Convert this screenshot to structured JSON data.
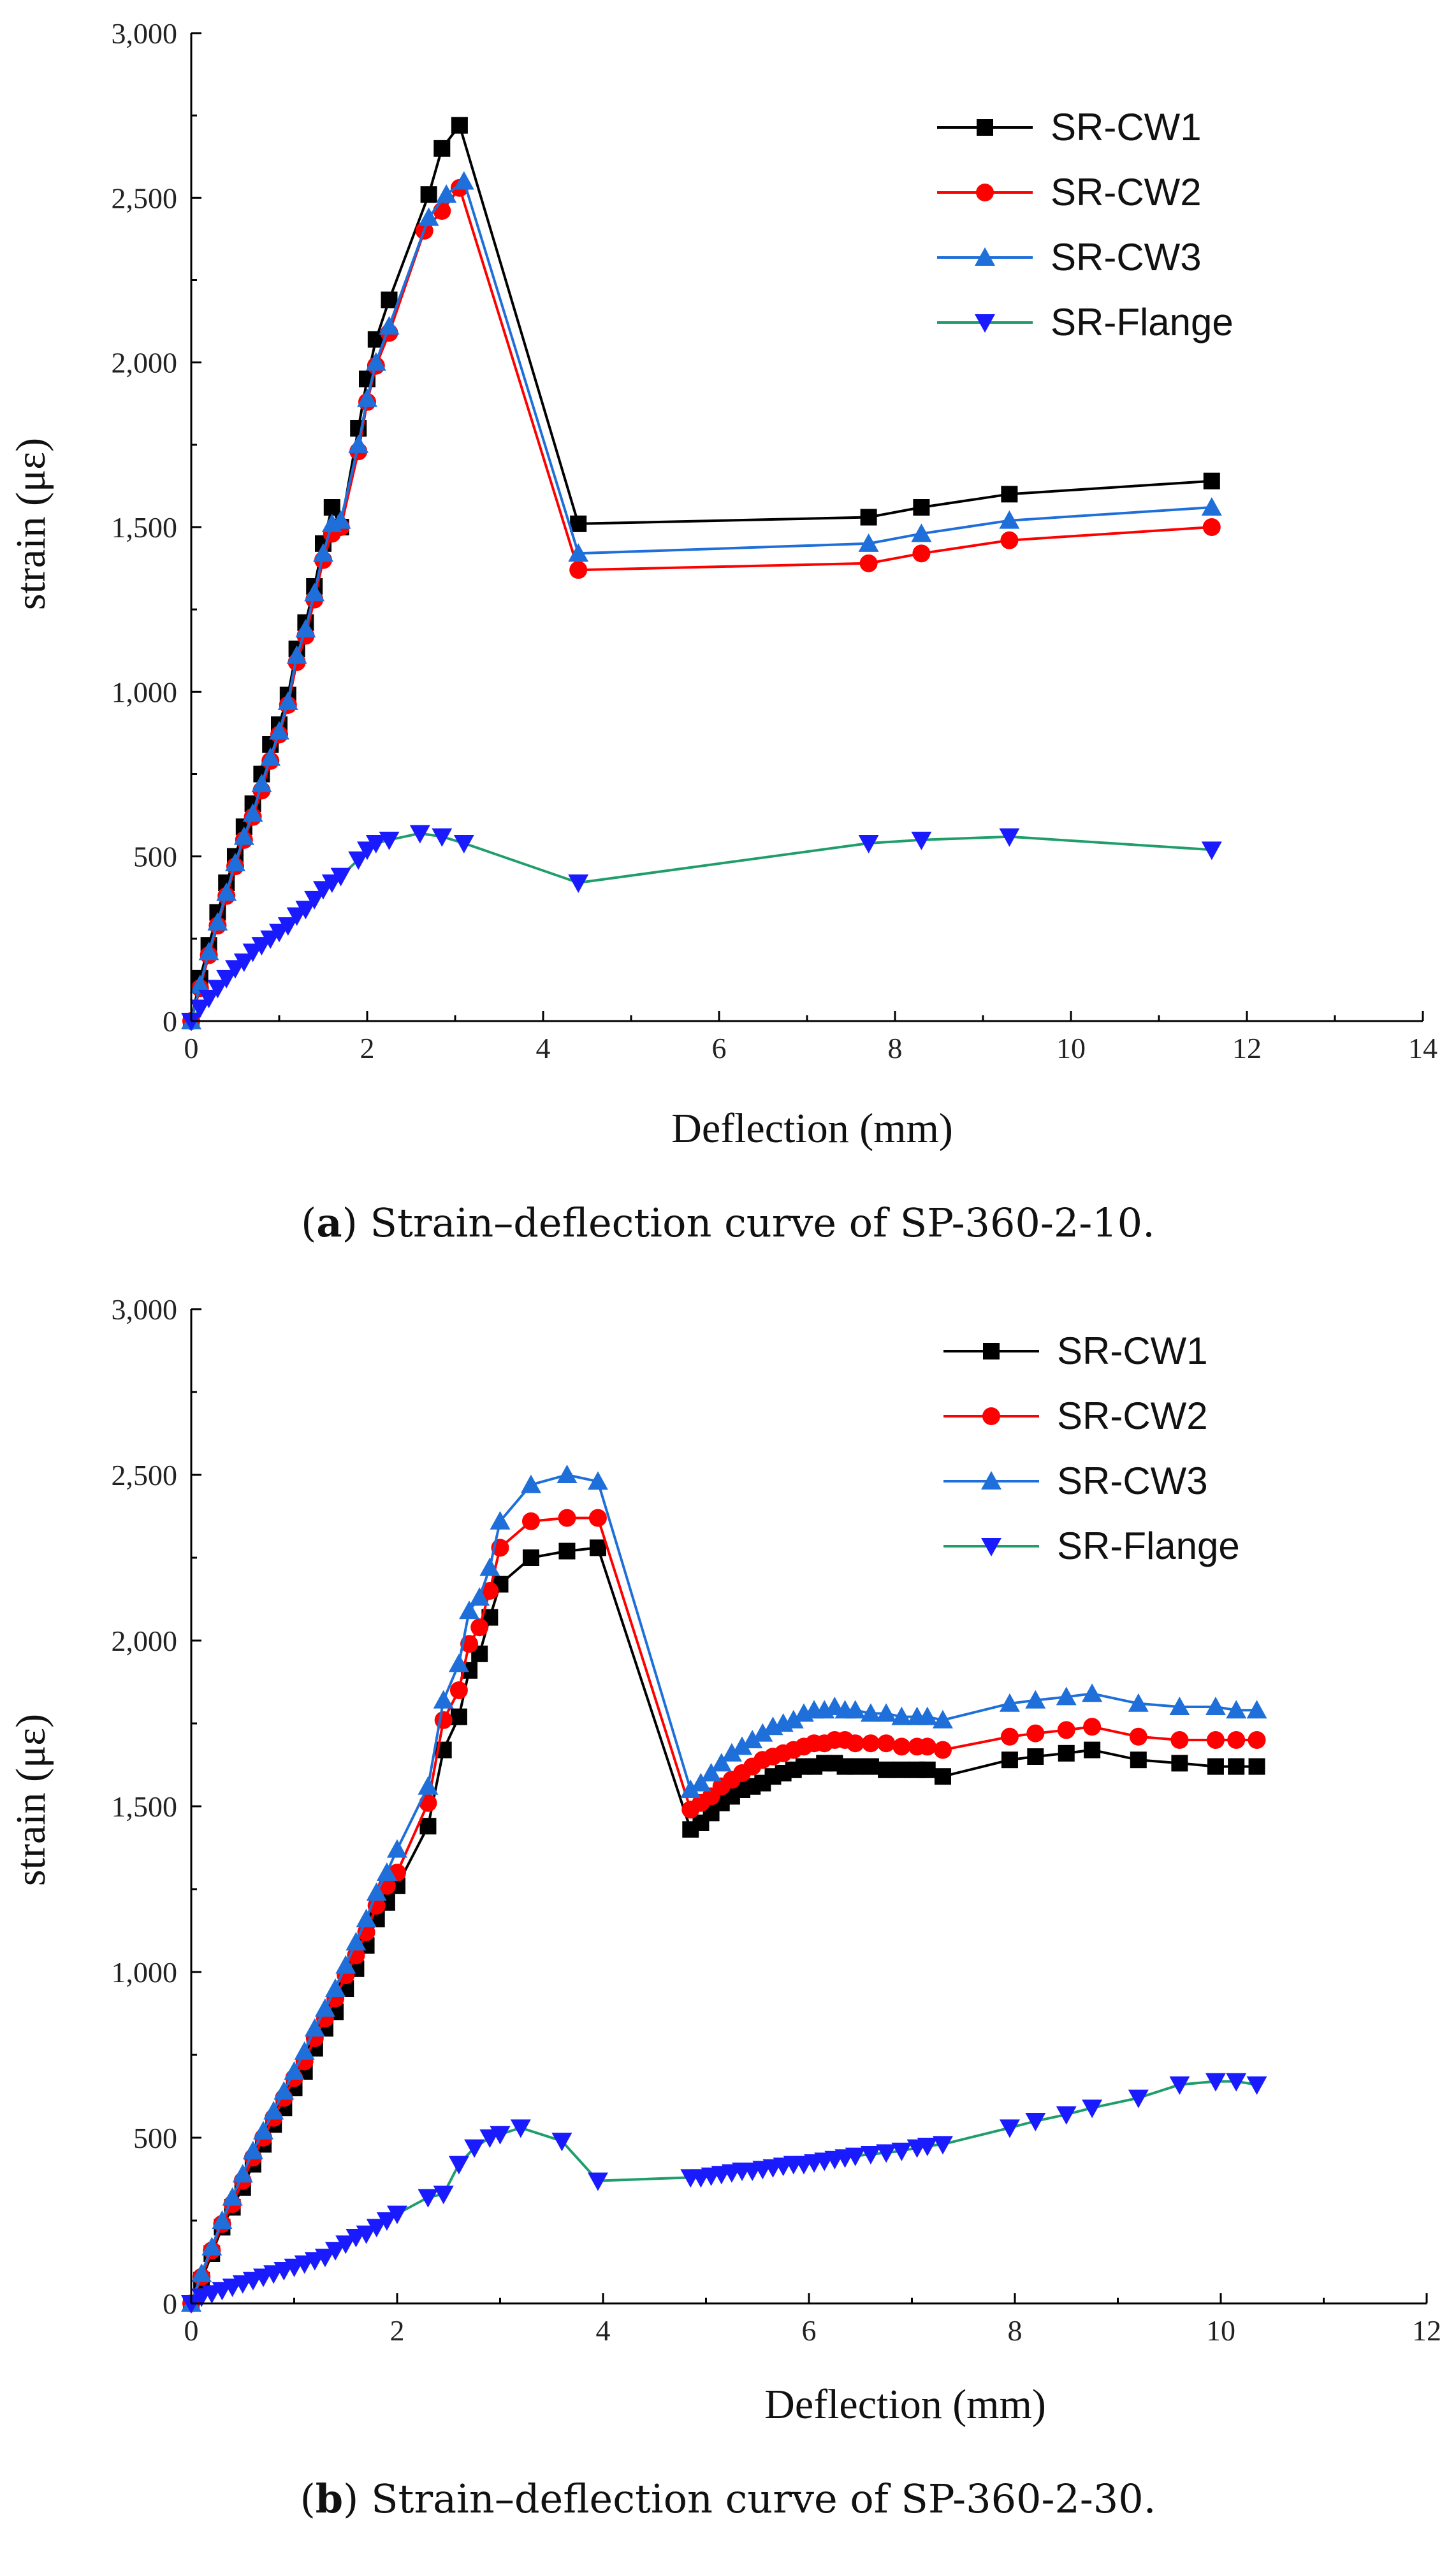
{
  "chart_data": [
    {
      "type": "line",
      "xlabel": "Deflection (mm)",
      "ylabel": "strain (με)",
      "xlim": [
        0,
        14
      ],
      "ylim": [
        0,
        3000
      ],
      "xticks": [
        "0",
        "2",
        "4",
        "6",
        "8",
        "10",
        "12",
        "14"
      ],
      "yticks": [
        "0",
        "500",
        "1,000",
        "1,500",
        "2,000",
        "2,500",
        "3,000"
      ],
      "legend_position": "top-right",
      "caption": {
        "label": "a",
        "text": "Strain–deflection curve of SP-360-2-10."
      },
      "series": [
        {
          "name": "SR-CW1",
          "color": "#000000",
          "marker": "square",
          "x": [
            0,
            0.1,
            0.2,
            0.3,
            0.4,
            0.5,
            0.6,
            0.7,
            0.8,
            0.9,
            1.0,
            1.1,
            1.2,
            1.3,
            1.4,
            1.5,
            1.6,
            1.7,
            1.9,
            2.0,
            2.1,
            2.25,
            2.7,
            2.85,
            3.05,
            4.4,
            7.7,
            8.3,
            9.3,
            11.6
          ],
          "y": [
            0,
            130,
            230,
            330,
            420,
            500,
            590,
            660,
            750,
            840,
            900,
            990,
            1130,
            1210,
            1320,
            1450,
            1560,
            1500,
            1800,
            1950,
            2070,
            2190,
            2510,
            2650,
            2720,
            1510,
            1530,
            1560,
            1600,
            1640
          ]
        },
        {
          "name": "SR-CW2",
          "color": "#ff0000",
          "marker": "circle",
          "x": [
            0,
            0.1,
            0.2,
            0.3,
            0.4,
            0.5,
            0.6,
            0.7,
            0.8,
            0.9,
            1.0,
            1.1,
            1.2,
            1.3,
            1.4,
            1.5,
            1.6,
            1.7,
            1.9,
            2.0,
            2.1,
            2.25,
            2.65,
            2.85,
            3.05,
            4.4,
            7.7,
            8.3,
            9.3,
            11.6
          ],
          "y": [
            0,
            100,
            200,
            290,
            380,
            470,
            550,
            620,
            700,
            790,
            870,
            960,
            1090,
            1170,
            1280,
            1400,
            1480,
            1500,
            1730,
            1880,
            1990,
            2090,
            2400,
            2460,
            2530,
            1370,
            1390,
            1420,
            1460,
            1500
          ]
        },
        {
          "name": "SR-CW3",
          "color": "#1e6fd9",
          "marker": "triangle-up",
          "x": [
            0,
            0.1,
            0.2,
            0.3,
            0.4,
            0.5,
            0.6,
            0.7,
            0.8,
            0.9,
            1.0,
            1.1,
            1.2,
            1.3,
            1.4,
            1.5,
            1.6,
            1.7,
            1.9,
            2.0,
            2.1,
            2.25,
            2.7,
            2.9,
            3.1,
            4.4,
            7.7,
            8.3,
            9.3,
            11.6
          ],
          "y": [
            0,
            110,
            210,
            300,
            390,
            480,
            560,
            630,
            720,
            800,
            880,
            970,
            1110,
            1190,
            1300,
            1420,
            1510,
            1520,
            1750,
            1890,
            2000,
            2110,
            2440,
            2510,
            2550,
            1420,
            1450,
            1480,
            1520,
            1560
          ]
        },
        {
          "name": "SR-Flange",
          "color": "#1f9e6b",
          "marker": "triangle-down",
          "x": [
            0,
            0.1,
            0.2,
            0.3,
            0.4,
            0.5,
            0.6,
            0.7,
            0.8,
            0.9,
            1.0,
            1.1,
            1.2,
            1.3,
            1.4,
            1.5,
            1.6,
            1.7,
            1.9,
            2.0,
            2.1,
            2.25,
            2.6,
            2.85,
            3.1,
            4.4,
            7.7,
            8.3,
            9.3,
            11.6
          ],
          "y": [
            0,
            40,
            70,
            100,
            130,
            160,
            180,
            210,
            230,
            250,
            270,
            290,
            320,
            340,
            370,
            400,
            420,
            440,
            490,
            520,
            540,
            550,
            570,
            560,
            540,
            420,
            540,
            550,
            560,
            520
          ]
        }
      ]
    },
    {
      "type": "line",
      "xlabel": "Deflection (mm)",
      "ylabel": "strain (με)",
      "xlim": [
        0,
        12
      ],
      "ylim": [
        0,
        3000
      ],
      "xticks": [
        "0",
        "2",
        "4",
        "6",
        "8",
        "10",
        "12"
      ],
      "yticks": [
        "0",
        "500",
        "1,000",
        "1,500",
        "2,000",
        "2,500",
        "3,000"
      ],
      "legend_position": "top-right",
      "caption": {
        "label": "b",
        "text": "Strain–deflection curve of SP-360-2-30."
      },
      "series": [
        {
          "name": "SR-CW1",
          "color": "#000000",
          "marker": "square",
          "x": [
            0,
            0.1,
            0.2,
            0.3,
            0.4,
            0.5,
            0.6,
            0.7,
            0.8,
            0.9,
            1.0,
            1.1,
            1.2,
            1.3,
            1.4,
            1.5,
            1.6,
            1.7,
            1.8,
            1.9,
            2.0,
            2.3,
            2.45,
            2.6,
            2.7,
            2.8,
            2.9,
            3.0,
            3.3,
            3.65,
            3.95,
            4.85,
            4.95,
            5.05,
            5.15,
            5.25,
            5.35,
            5.45,
            5.55,
            5.65,
            5.75,
            5.85,
            5.95,
            6.05,
            6.15,
            6.25,
            6.35,
            6.45,
            6.6,
            6.75,
            6.9,
            7.05,
            7.15,
            7.3,
            7.95,
            8.2,
            8.5,
            8.75,
            9.2,
            9.6,
            9.95,
            10.15,
            10.35
          ],
          "y": [
            0,
            70,
            150,
            230,
            290,
            350,
            420,
            480,
            540,
            590,
            650,
            700,
            770,
            830,
            880,
            950,
            1010,
            1080,
            1160,
            1210,
            1260,
            1440,
            1670,
            1770,
            1910,
            1960,
            2070,
            2170,
            2250,
            2270,
            2280,
            1430,
            1450,
            1480,
            1510,
            1530,
            1550,
            1560,
            1570,
            1590,
            1600,
            1610,
            1620,
            1620,
            1630,
            1630,
            1620,
            1620,
            1620,
            1610,
            1610,
            1610,
            1610,
            1590,
            1640,
            1650,
            1660,
            1670,
            1640,
            1630,
            1620,
            1620,
            1620
          ]
        },
        {
          "name": "SR-CW2",
          "color": "#ff0000",
          "marker": "circle",
          "x": [
            0,
            0.1,
            0.2,
            0.3,
            0.4,
            0.5,
            0.6,
            0.7,
            0.8,
            0.9,
            1.0,
            1.1,
            1.2,
            1.3,
            1.4,
            1.5,
            1.6,
            1.7,
            1.8,
            1.9,
            2.0,
            2.3,
            2.45,
            2.6,
            2.7,
            2.8,
            2.9,
            3.0,
            3.3,
            3.65,
            3.95,
            4.85,
            4.95,
            5.05,
            5.15,
            5.25,
            5.35,
            5.45,
            5.55,
            5.65,
            5.75,
            5.85,
            5.95,
            6.05,
            6.15,
            6.25,
            6.35,
            6.45,
            6.6,
            6.75,
            6.9,
            7.05,
            7.15,
            7.3,
            7.95,
            8.2,
            8.5,
            8.75,
            9.2,
            9.6,
            9.95,
            10.15,
            10.35
          ],
          "y": [
            0,
            80,
            160,
            240,
            300,
            370,
            440,
            500,
            560,
            620,
            680,
            730,
            800,
            860,
            920,
            990,
            1050,
            1120,
            1200,
            1260,
            1300,
            1510,
            1760,
            1850,
            1990,
            2040,
            2150,
            2280,
            2360,
            2370,
            2370,
            1490,
            1510,
            1530,
            1560,
            1580,
            1600,
            1620,
            1640,
            1650,
            1660,
            1670,
            1680,
            1690,
            1690,
            1700,
            1700,
            1690,
            1690,
            1690,
            1680,
            1680,
            1680,
            1670,
            1710,
            1720,
            1730,
            1740,
            1710,
            1700,
            1700,
            1700,
            1700
          ]
        },
        {
          "name": "SR-CW3",
          "color": "#1e6fd9",
          "marker": "triangle-up",
          "x": [
            0,
            0.1,
            0.2,
            0.3,
            0.4,
            0.5,
            0.6,
            0.7,
            0.8,
            0.9,
            1.0,
            1.1,
            1.2,
            1.3,
            1.4,
            1.5,
            1.6,
            1.7,
            1.8,
            1.9,
            2.0,
            2.3,
            2.45,
            2.6,
            2.7,
            2.8,
            2.9,
            3.0,
            3.3,
            3.65,
            3.95,
            4.85,
            4.95,
            5.05,
            5.15,
            5.25,
            5.35,
            5.45,
            5.55,
            5.65,
            5.75,
            5.85,
            5.95,
            6.05,
            6.15,
            6.25,
            6.35,
            6.45,
            6.6,
            6.75,
            6.9,
            7.05,
            7.15,
            7.3,
            7.95,
            8.2,
            8.5,
            8.75,
            9.2,
            9.6,
            9.95,
            10.15,
            10.35
          ],
          "y": [
            0,
            90,
            170,
            250,
            320,
            390,
            460,
            520,
            580,
            640,
            700,
            760,
            830,
            890,
            950,
            1020,
            1090,
            1160,
            1240,
            1300,
            1370,
            1560,
            1820,
            1930,
            2090,
            2130,
            2220,
            2360,
            2470,
            2500,
            2480,
            1550,
            1570,
            1600,
            1630,
            1660,
            1680,
            1700,
            1720,
            1740,
            1750,
            1760,
            1780,
            1790,
            1790,
            1800,
            1790,
            1790,
            1780,
            1780,
            1770,
            1770,
            1770,
            1760,
            1810,
            1820,
            1830,
            1840,
            1810,
            1800,
            1800,
            1790,
            1790
          ]
        },
        {
          "name": "SR-Flange",
          "color": "#1f9e6b",
          "marker": "triangle-down",
          "x": [
            0,
            0.1,
            0.2,
            0.3,
            0.4,
            0.5,
            0.6,
            0.7,
            0.8,
            0.9,
            1.0,
            1.1,
            1.2,
            1.3,
            1.4,
            1.5,
            1.6,
            1.7,
            1.8,
            1.9,
            2.0,
            2.3,
            2.45,
            2.6,
            2.75,
            2.9,
            3.0,
            3.2,
            3.6,
            3.95,
            4.85,
            4.95,
            5.05,
            5.15,
            5.25,
            5.35,
            5.45,
            5.55,
            5.65,
            5.75,
            5.85,
            5.95,
            6.05,
            6.15,
            6.25,
            6.35,
            6.45,
            6.6,
            6.75,
            6.9,
            7.05,
            7.15,
            7.3,
            7.95,
            8.2,
            8.5,
            8.75,
            9.2,
            9.6,
            9.95,
            10.15,
            10.35
          ],
          "y": [
            0,
            20,
            30,
            40,
            50,
            60,
            70,
            80,
            90,
            100,
            110,
            120,
            130,
            140,
            160,
            180,
            200,
            210,
            230,
            250,
            270,
            320,
            330,
            420,
            470,
            500,
            510,
            530,
            490,
            370,
            380,
            380,
            385,
            390,
            395,
            400,
            400,
            405,
            410,
            415,
            420,
            420,
            425,
            430,
            435,
            440,
            445,
            450,
            455,
            460,
            470,
            475,
            480,
            530,
            550,
            570,
            590,
            620,
            660,
            670,
            670,
            660
          ]
        }
      ]
    }
  ]
}
